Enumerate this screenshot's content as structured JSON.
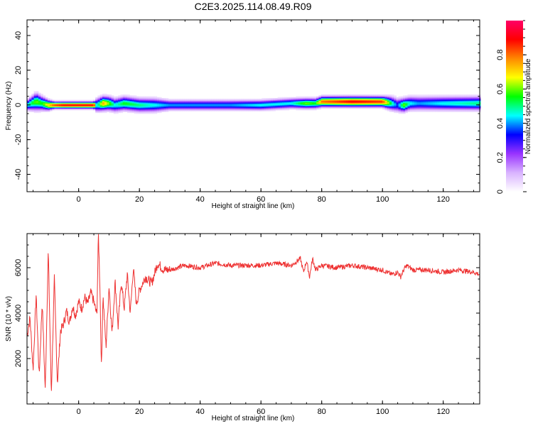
{
  "figure": {
    "title": "C2E3.2025.114.08.49.R09"
  },
  "chart_data": [
    {
      "type": "heatmap",
      "title": "C2E3.2025.114.08.49.R09",
      "xlabel": "Height of straight line (km)",
      "ylabel": "Frequency (Hz)",
      "xlim": [
        -17,
        132
      ],
      "ylim": [
        -50,
        49
      ],
      "x_ticks": [
        0,
        20,
        40,
        60,
        80,
        100,
        120
      ],
      "y_ticks": [
        -40,
        -20,
        0,
        20,
        40
      ],
      "colorbar": {
        "label": "Normalized spectral amplitude",
        "range": [
          0,
          1
        ],
        "ticks": [
          0.0,
          0.2,
          0.4,
          0.6,
          0.8
        ],
        "colors": [
          "#ffffff",
          "#d9b3ff",
          "#9933ff",
          "#0000ff",
          "#00ffff",
          "#00ff00",
          "#ffff00",
          "#ff8800",
          "#ff0000",
          "#ff0066"
        ]
      },
      "ridge": {
        "x": [
          -17,
          -14,
          -12,
          -10,
          -8,
          -5,
          0,
          5,
          6,
          8,
          10,
          12,
          15,
          20,
          25,
          30,
          40,
          50,
          60,
          70,
          75,
          78,
          80,
          90,
          100,
          103,
          105,
          107,
          109,
          112,
          120,
          132
        ],
        "frequency": [
          0,
          2,
          1,
          0,
          0,
          0,
          0,
          0,
          0,
          1,
          1,
          0,
          1,
          0,
          0,
          0,
          0,
          0,
          0,
          1,
          1,
          1,
          2,
          2,
          2,
          1,
          0,
          0,
          1,
          1,
          1,
          1
        ],
        "amplitude": [
          0.45,
          0.6,
          0.55,
          0.7,
          0.85,
          0.9,
          0.9,
          0.9,
          0.4,
          0.75,
          0.6,
          0.45,
          0.55,
          0.5,
          0.45,
          0.4,
          0.4,
          0.4,
          0.45,
          0.45,
          0.6,
          0.55,
          0.8,
          0.9,
          0.85,
          0.5,
          0.35,
          0.6,
          0.45,
          0.4,
          0.45,
          0.5
        ],
        "spread_hz": [
          3,
          5,
          4,
          3,
          2,
          2,
          2,
          2,
          4,
          4,
          4,
          4,
          4,
          4,
          4,
          3,
          3,
          3,
          3,
          3,
          3,
          3,
          3,
          3,
          3,
          4,
          4,
          4,
          4,
          4,
          4,
          4
        ]
      }
    },
    {
      "type": "line",
      "xlabel": "Height of straight line (km)",
      "ylabel": "SNR (10 * v/v)",
      "xlim": [
        -17,
        132
      ],
      "ylim": [
        0,
        7500
      ],
      "x_ticks": [
        0,
        20,
        40,
        60,
        80,
        100,
        120
      ],
      "y_ticks": [
        2000,
        4000,
        6000
      ],
      "series": [
        {
          "color": "#ee3333",
          "x": [
            -17,
            -16,
            -15,
            -14,
            -13,
            -12,
            -11,
            -10,
            -9,
            -8,
            -7,
            -6,
            -5,
            -4,
            -3,
            -2,
            -1,
            0,
            1,
            2,
            3,
            4,
            5,
            6,
            6.5,
            7,
            7.5,
            8,
            9,
            10,
            11,
            12,
            13,
            14,
            15,
            16,
            17,
            18,
            19,
            20,
            22,
            24,
            26,
            28,
            30,
            35,
            40,
            45,
            50,
            55,
            60,
            65,
            70,
            73,
            74,
            75,
            76,
            77,
            78,
            80,
            85,
            90,
            95,
            100,
            103,
            105,
            106,
            107,
            108,
            110,
            115,
            120,
            125,
            130,
            132
          ],
          "values": [
            3000,
            3800,
            1500,
            4800,
            1200,
            4500,
            600,
            6800,
            400,
            5500,
            900,
            3200,
            3500,
            4100,
            3600,
            4300,
            3900,
            4500,
            4200,
            4700,
            4400,
            4900,
            4500,
            3900,
            7500,
            5200,
            1500,
            4800,
            2500,
            5200,
            3100,
            5400,
            3400,
            5400,
            4200,
            5700,
            4000,
            6000,
            4400,
            5000,
            5600,
            5300,
            6200,
            5900,
            5900,
            6100,
            6000,
            6200,
            6100,
            6100,
            6100,
            6200,
            6100,
            6400,
            5800,
            6300,
            5600,
            6400,
            5900,
            6100,
            6000,
            6100,
            6000,
            5900,
            5700,
            5800,
            5600,
            5900,
            6100,
            5900,
            5900,
            5800,
            5900,
            5800,
            5700
          ]
        }
      ]
    }
  ]
}
